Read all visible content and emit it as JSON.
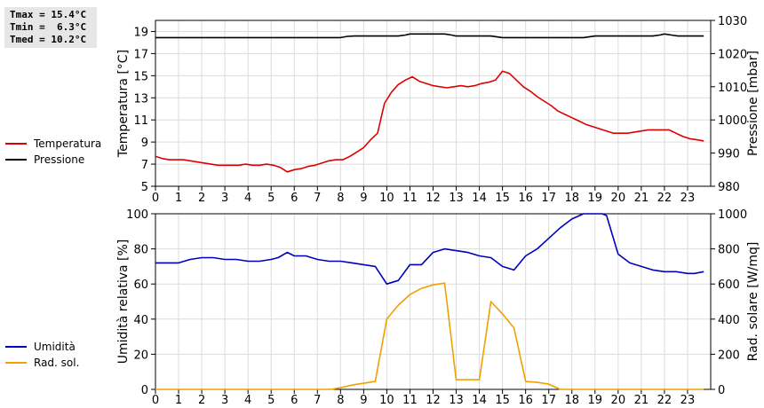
{
  "stats": {
    "tmax": "Tmax = 15.4°C",
    "tmin": "Tmin =  6.3°C",
    "tmed": "Tmed = 10.2°C"
  },
  "chart_data": [
    {
      "type": "line",
      "x_ticks": [
        "0",
        "1",
        "2",
        "3",
        "4",
        "5",
        "6",
        "7",
        "8",
        "9",
        "10",
        "11",
        "12",
        "13",
        "14",
        "15",
        "16",
        "17",
        "18",
        "19",
        "20",
        "21",
        "22",
        "23"
      ],
      "xlim": [
        0,
        24
      ],
      "ylabel_left": "Temperatura [°C]",
      "ylabel_right": "Pressione [mbar]",
      "ylim_left": [
        5,
        20
      ],
      "yticks_left": [
        5,
        7,
        9,
        11,
        13,
        15,
        17,
        19
      ],
      "ylim_right": [
        980,
        1030
      ],
      "yticks_right": [
        980,
        990,
        1000,
        1010,
        1020,
        1030
      ],
      "grid": true,
      "series": [
        {
          "name": "Temperatura",
          "axis": "left",
          "color": "#dd0000",
          "x": [
            0,
            0.3,
            0.6,
            0.9,
            1.2,
            1.5,
            1.8,
            2.1,
            2.4,
            2.7,
            3.0,
            3.3,
            3.6,
            3.9,
            4.2,
            4.5,
            4.8,
            5.1,
            5.4,
            5.7,
            6.0,
            6.3,
            6.6,
            6.9,
            7.2,
            7.5,
            7.8,
            8.1,
            8.4,
            8.7,
            9.0,
            9.3,
            9.6,
            9.9,
            10.2,
            10.5,
            10.8,
            11.1,
            11.4,
            11.7,
            12.0,
            12.3,
            12.6,
            12.9,
            13.2,
            13.5,
            13.8,
            14.1,
            14.4,
            14.7,
            15.0,
            15.3,
            15.6,
            15.9,
            16.2,
            16.5,
            16.8,
            17.1,
            17.4,
            17.7,
            18.0,
            18.3,
            18.6,
            18.9,
            19.2,
            19.5,
            19.8,
            20.1,
            20.4,
            20.7,
            21.0,
            21.3,
            21.6,
            21.9,
            22.2,
            22.5,
            22.8,
            23.1,
            23.4,
            23.7
          ],
          "y": [
            7.7,
            7.5,
            7.4,
            7.4,
            7.4,
            7.3,
            7.2,
            7.1,
            7.0,
            6.9,
            6.9,
            6.9,
            6.9,
            7.0,
            6.9,
            6.9,
            7.0,
            6.9,
            6.7,
            6.3,
            6.5,
            6.6,
            6.8,
            6.9,
            7.1,
            7.3,
            7.4,
            7.4,
            7.7,
            8.1,
            8.5,
            9.2,
            9.8,
            12.5,
            13.5,
            14.2,
            14.6,
            14.9,
            14.5,
            14.3,
            14.1,
            14.0,
            13.9,
            14.0,
            14.1,
            14.0,
            14.1,
            14.3,
            14.4,
            14.6,
            15.4,
            15.2,
            14.6,
            14.0,
            13.6,
            13.1,
            12.7,
            12.3,
            11.8,
            11.5,
            11.2,
            10.9,
            10.6,
            10.4,
            10.2,
            10.0,
            9.8,
            9.8,
            9.8,
            9.9,
            10.0,
            10.1,
            10.1,
            10.1,
            10.1,
            9.8,
            9.5,
            9.3,
            9.2,
            9.1
          ]
        },
        {
          "name": "Pressione",
          "axis": "right",
          "color": "#000000",
          "x": [
            0,
            0.5,
            1,
            1.5,
            2,
            2.5,
            3,
            3.5,
            4,
            4.5,
            5,
            5.5,
            6,
            6.5,
            7,
            7.5,
            8,
            8.3,
            8.6,
            9,
            9.5,
            10,
            10.5,
            10.8,
            11,
            11.5,
            12,
            12.5,
            12.8,
            13,
            13.5,
            14,
            14.5,
            14.8,
            15,
            15.5,
            16,
            16.5,
            17,
            17.5,
            18,
            18.5,
            18.8,
            19,
            19.5,
            20,
            20.5,
            21,
            21.5,
            21.8,
            22,
            22.3,
            22.6,
            23,
            23.5,
            23.7
          ],
          "y": [
            1024.8,
            1024.8,
            1024.8,
            1024.8,
            1024.8,
            1024.8,
            1024.8,
            1024.8,
            1024.8,
            1024.8,
            1024.8,
            1024.8,
            1024.8,
            1024.8,
            1024.8,
            1024.8,
            1024.8,
            1025.2,
            1025.3,
            1025.3,
            1025.3,
            1025.3,
            1025.3,
            1025.6,
            1025.9,
            1025.9,
            1025.9,
            1025.9,
            1025.6,
            1025.3,
            1025.3,
            1025.3,
            1025.3,
            1025.0,
            1024.8,
            1024.8,
            1024.8,
            1024.8,
            1024.8,
            1024.8,
            1024.8,
            1024.8,
            1025.1,
            1025.3,
            1025.3,
            1025.3,
            1025.3,
            1025.3,
            1025.3,
            1025.6,
            1025.9,
            1025.6,
            1025.3,
            1025.3,
            1025.3,
            1025.3
          ]
        }
      ]
    },
    {
      "type": "line",
      "x_ticks": [
        "0",
        "1",
        "2",
        "3",
        "4",
        "5",
        "6",
        "7",
        "8",
        "9",
        "10",
        "11",
        "12",
        "13",
        "14",
        "15",
        "16",
        "17",
        "18",
        "19",
        "20",
        "21",
        "22",
        "23"
      ],
      "xlim": [
        0,
        24
      ],
      "ylabel_left": "Umidità relativa [%]",
      "ylabel_right": "Rad. solare [W/mq]",
      "ylim_left": [
        0,
        100
      ],
      "yticks_left": [
        0,
        20,
        40,
        60,
        80,
        100
      ],
      "ylim_right": [
        0,
        1000
      ],
      "yticks_right": [
        0,
        200,
        400,
        600,
        800,
        1000
      ],
      "grid": true,
      "series": [
        {
          "name": "Umidità",
          "axis": "left",
          "color": "#0000bb",
          "x": [
            0,
            0.5,
            1,
            1.5,
            2,
            2.5,
            3,
            3.5,
            4,
            4.5,
            5,
            5.3,
            5.7,
            6,
            6.5,
            7,
            7.5,
            8,
            8.5,
            9,
            9.5,
            10,
            10.5,
            11,
            11.5,
            12,
            12.5,
            13,
            13.5,
            14,
            14.5,
            15,
            15.5,
            16,
            16.5,
            17,
            17.5,
            18,
            18.5,
            19,
            19.3,
            19.5,
            20,
            20.5,
            21,
            21.5,
            22,
            22.5,
            23,
            23.3,
            23.7
          ],
          "y": [
            72,
            72,
            72,
            74,
            75,
            75,
            74,
            74,
            73,
            73,
            74,
            75,
            78,
            76,
            76,
            74,
            73,
            73,
            72,
            71,
            70,
            60,
            62,
            71,
            71,
            78,
            80,
            79,
            78,
            76,
            75,
            70,
            68,
            76,
            80,
            86,
            92,
            97,
            100,
            100,
            100,
            99,
            77,
            72,
            70,
            68,
            67,
            67,
            66,
            66,
            67
          ]
        },
        {
          "name": "Rad. sol.",
          "axis": "right",
          "color": "#f0a000",
          "x": [
            0,
            1,
            2,
            3,
            4,
            5,
            6,
            7,
            7.6,
            8,
            8.5,
            9,
            9.5,
            10,
            10.5,
            11,
            11.5,
            12,
            12.5,
            13,
            13.5,
            14,
            14.5,
            15,
            15.5,
            16,
            16.5,
            17,
            17.5,
            18,
            19,
            20,
            21,
            22,
            23,
            23.7
          ],
          "y": [
            0,
            0,
            0,
            0,
            0,
            0,
            0,
            0,
            0,
            10,
            25,
            35,
            45,
            400,
            480,
            540,
            575,
            595,
            605,
            55,
            55,
            55,
            500,
            430,
            350,
            45,
            40,
            30,
            0,
            0,
            0,
            0,
            0,
            0,
            0,
            0
          ]
        }
      ]
    }
  ]
}
